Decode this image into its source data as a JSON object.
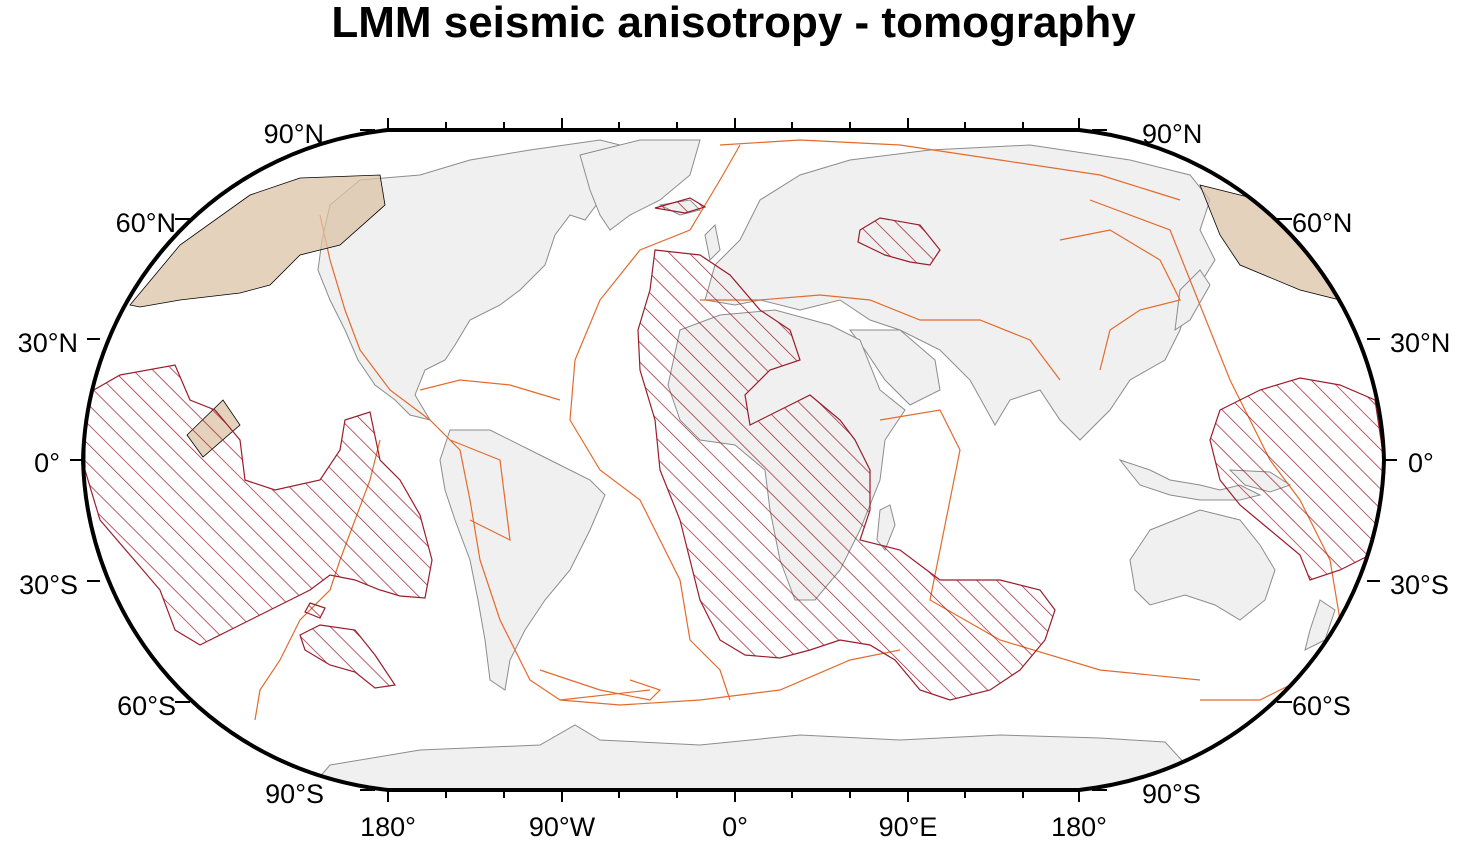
{
  "title": "LMM seismic anisotropy - tomography",
  "axes": {
    "left_lat_labels": [
      "90°N",
      "60°N",
      "30°N",
      "0°",
      "30°S",
      "60°S",
      "90°S"
    ],
    "right_lat_labels": [
      "90°N",
      "60°N",
      "30°N",
      "0°",
      "30°S",
      "60°S",
      "90°S"
    ],
    "lon_labels": [
      "180°",
      "90°W",
      "0°",
      "90°E",
      "180°"
    ]
  },
  "map": {
    "projection": "robinson",
    "central_meridian": 0,
    "colors": {
      "land": "#f0f0f0",
      "coastline": "#8c8c8c",
      "plate_boundaries": "#e36b2c",
      "hatched_regions": "#9b1c2c",
      "tan_regions": "#dcc3a6",
      "frame": "#000000"
    },
    "layers": [
      "land",
      "coastlines",
      "plate-boundaries",
      "anisotropy-regions-hatched",
      "anisotropy-regions-shaded"
    ]
  }
}
